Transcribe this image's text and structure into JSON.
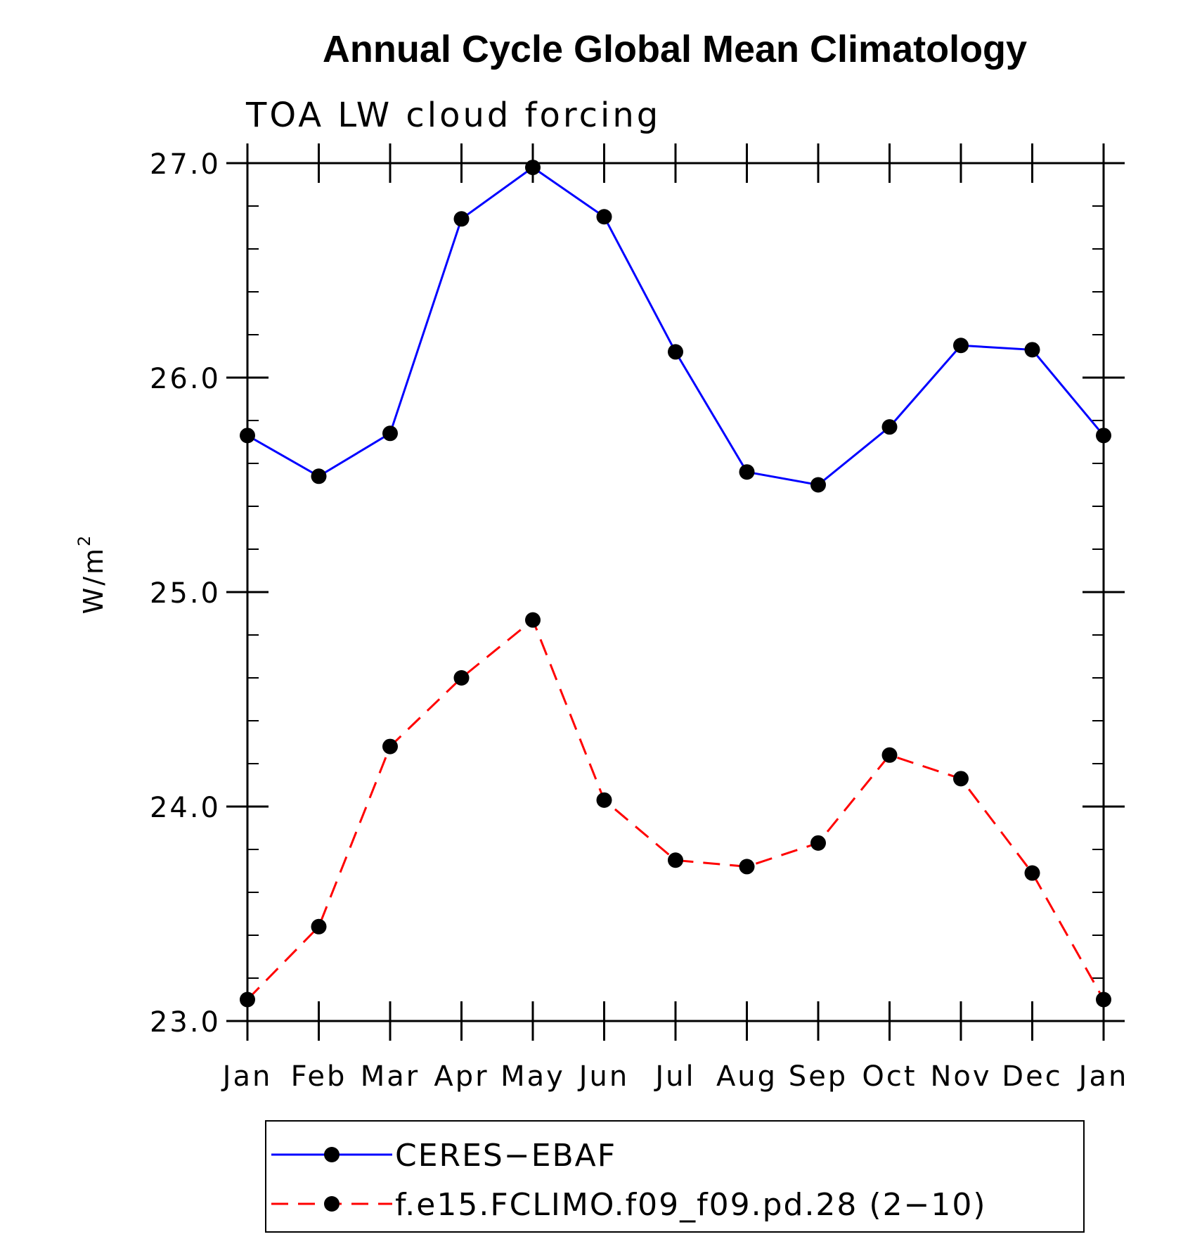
{
  "chart_data": {
    "type": "line",
    "title": "Annual Cycle Global Mean Climatology",
    "subtitle": "TOA LW cloud forcing",
    "ylabel": "W/m",
    "ylabel_superscript": "2",
    "ylim": [
      23.0,
      27.0
    ],
    "yticks": [
      "23.0",
      "24.0",
      "25.0",
      "26.0",
      "27.0"
    ],
    "ytick_values": [
      23.0,
      24.0,
      25.0,
      26.0,
      27.0
    ],
    "categories": [
      "Jan",
      "Feb",
      "Mar",
      "Apr",
      "May",
      "Jun",
      "Jul",
      "Aug",
      "Sep",
      "Oct",
      "Nov",
      "Dec",
      "Jan"
    ],
    "grid": false,
    "legend_placement": "bottom",
    "series": [
      {
        "name": "CERES−EBAF",
        "color": "#0000ff",
        "line_style": "solid",
        "values": [
          25.73,
          25.54,
          25.74,
          26.74,
          26.98,
          26.75,
          26.12,
          25.56,
          25.5,
          25.77,
          26.15,
          26.13,
          25.73
        ]
      },
      {
        "name": "f.e15.FCLIMO.f09_f09.pd.28 (2−10)",
        "color": "#ff0000",
        "line_style": "dashed",
        "values": [
          23.1,
          23.44,
          24.28,
          24.6,
          24.87,
          24.03,
          23.75,
          23.72,
          23.83,
          24.24,
          24.13,
          23.69,
          23.1
        ]
      }
    ]
  }
}
